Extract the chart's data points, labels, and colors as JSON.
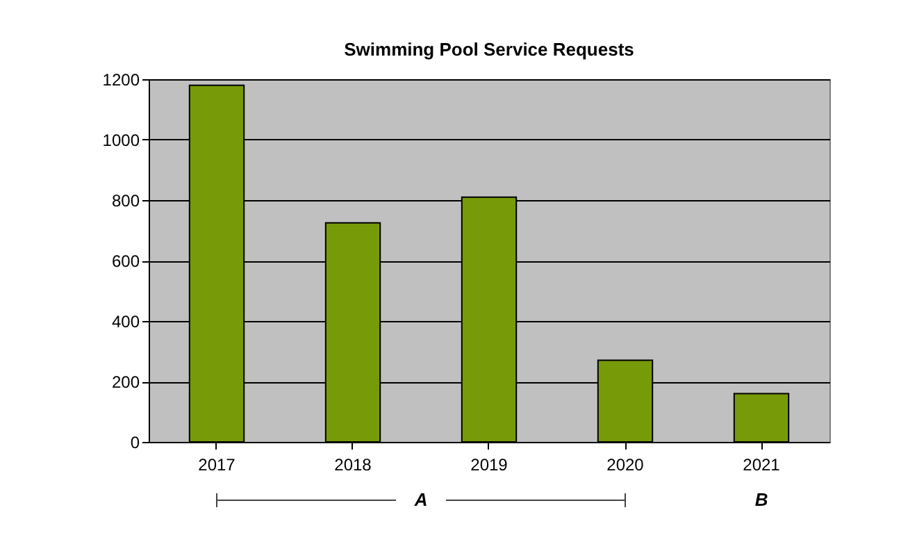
{
  "chart_data": {
    "type": "bar",
    "title": "Swimming Pool Service Requests",
    "categories": [
      "2017",
      "2018",
      "2019",
      "2020",
      "2021"
    ],
    "values": [
      1180,
      725,
      810,
      270,
      160
    ],
    "color": "#769a08",
    "ylim": [
      0,
      1200
    ],
    "yticks": [
      0,
      200,
      400,
      600,
      800,
      1000,
      1200
    ],
    "grid": "y",
    "annotations": [
      "A",
      "B"
    ]
  }
}
